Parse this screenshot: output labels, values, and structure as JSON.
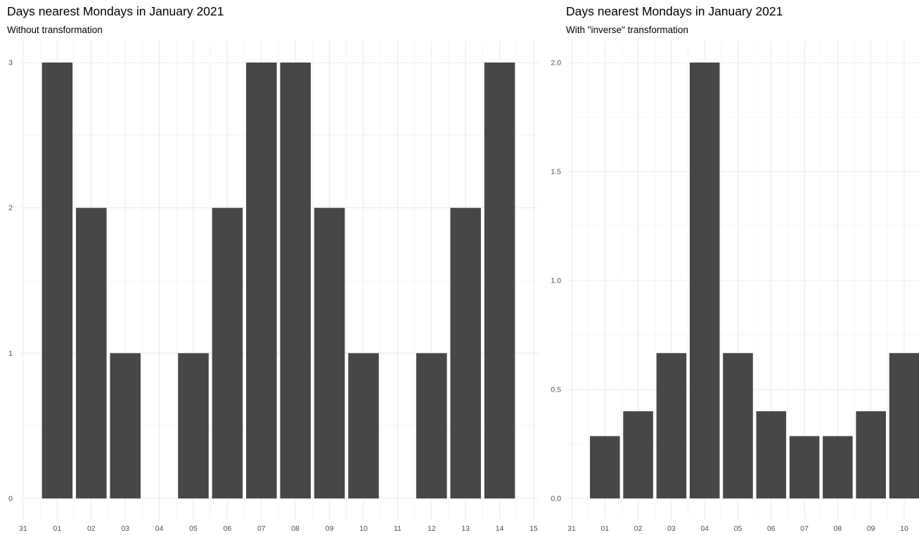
{
  "chart_data": [
    {
      "type": "bar",
      "title": "Days nearest Mondays in January 2021",
      "subtitle": "Without transformation",
      "xlabel": "",
      "ylabel": "",
      "x_tick_labels": [
        "31",
        "01",
        "02",
        "03",
        "04",
        "05",
        "06",
        "07",
        "08",
        "09",
        "10",
        "11",
        "12",
        "13",
        "14",
        "15"
      ],
      "y_tick_labels": [
        "0",
        "1",
        "2",
        "3"
      ],
      "ylim": [
        0,
        3
      ],
      "grid": true,
      "bar_color": "#474747",
      "categories": [
        "01",
        "02",
        "03",
        "04",
        "05",
        "06",
        "07",
        "08",
        "09",
        "10",
        "11",
        "12",
        "13",
        "14"
      ],
      "values": [
        3,
        2,
        1,
        0,
        1,
        2,
        3,
        3,
        2,
        1,
        0,
        1,
        2,
        3
      ]
    },
    {
      "type": "bar",
      "title": "Days nearest Mondays in January 2021",
      "subtitle": "With \"inverse\" transformation",
      "xlabel": "",
      "ylabel": "",
      "x_tick_labels": [
        "31",
        "01",
        "02",
        "03",
        "04",
        "05",
        "06",
        "07",
        "08",
        "09",
        "10"
      ],
      "y_tick_labels": [
        "0.0",
        "0.5",
        "1.0",
        "1.5",
        "2.0"
      ],
      "ylim": [
        0,
        2
      ],
      "grid": true,
      "bar_color": "#474747",
      "categories": [
        "01",
        "02",
        "03",
        "04",
        "05",
        "06",
        "07",
        "08",
        "09",
        "10"
      ],
      "values": [
        0.286,
        0.4,
        0.667,
        2,
        0.667,
        0.4,
        0.286,
        0.286,
        0.4,
        0.667
      ]
    }
  ]
}
